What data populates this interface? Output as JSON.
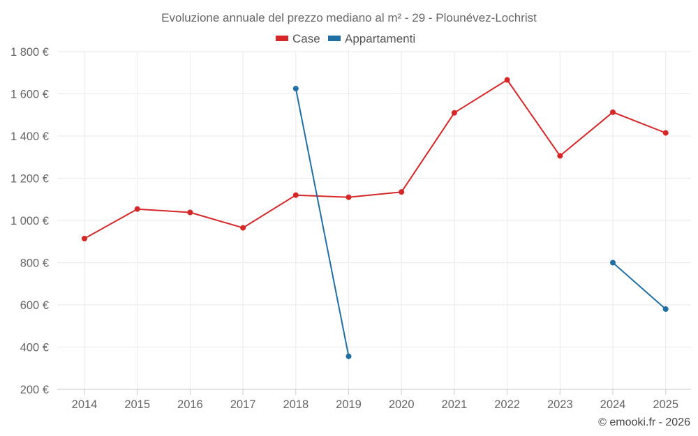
{
  "chart_data": {
    "type": "line",
    "title": "Evoluzione annuale del prezzo mediano al m² - 29 - Plounévez-Lochrist",
    "categories": [
      "2014",
      "2015",
      "2016",
      "2017",
      "2018",
      "2019",
      "2020",
      "2021",
      "2022",
      "2023",
      "2024",
      "2025"
    ],
    "series": [
      {
        "name": "Case",
        "color": "#d62728",
        "values": [
          914,
          1054,
          1038,
          965,
          1120,
          1110,
          1135,
          1510,
          1666,
          1306,
          1513,
          1415
        ]
      },
      {
        "name": "Appartamenti",
        "color": "#1f6fa5",
        "values": [
          null,
          null,
          null,
          null,
          1625,
          356,
          null,
          null,
          null,
          null,
          800,
          580
        ]
      }
    ],
    "y_ticks": [
      200,
      400,
      600,
      800,
      1000,
      1200,
      1400,
      1600,
      1800
    ],
    "y_tick_labels": [
      "200 €",
      "400 €",
      "600 €",
      "800 €",
      "1 000 €",
      "1 200 €",
      "1 400 €",
      "1 600 €",
      "1 800 €"
    ],
    "ylim": [
      200,
      1800
    ],
    "xlabel": "",
    "ylabel": "",
    "grid": true,
    "legend_position": "top-center"
  },
  "credit": "© emooki.fr - 2026"
}
